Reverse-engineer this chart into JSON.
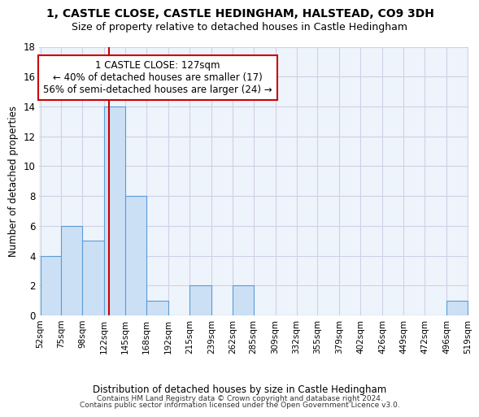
{
  "title": "1, CASTLE CLOSE, CASTLE HEDINGHAM, HALSTEAD, CO9 3DH",
  "subtitle": "Size of property relative to detached houses in Castle Hedingham",
  "xlabel": "Distribution of detached houses by size in Castle Hedingham",
  "ylabel": "Number of detached properties",
  "footer_line1": "Contains HM Land Registry data © Crown copyright and database right 2024.",
  "footer_line2": "Contains public sector information licensed under the Open Government Licence v3.0.",
  "bar_edges": [
    52,
    75,
    98,
    122,
    145,
    168,
    192,
    215,
    239,
    262,
    285,
    309,
    332,
    355,
    379,
    402,
    426,
    449,
    472,
    496,
    519
  ],
  "bar_values": [
    4,
    6,
    5,
    14,
    8,
    1,
    0,
    2,
    0,
    2,
    0,
    0,
    0,
    0,
    0,
    0,
    0,
    0,
    0,
    1
  ],
  "bar_color": "#cce0f5",
  "bar_edge_color": "#5b9bd5",
  "grid_color": "#d0d0e8",
  "background_color": "#eef4fb",
  "red_line_x": 127,
  "annotation_text_line1": "1 CASTLE CLOSE: 127sqm",
  "annotation_text_line2": "← 40% of detached houses are smaller (17)",
  "annotation_text_line3": "56% of semi-detached houses are larger (24) →",
  "annotation_box_color": "#cc0000",
  "ylim": [
    0,
    18
  ],
  "yticks": [
    0,
    2,
    4,
    6,
    8,
    10,
    12,
    14,
    16,
    18
  ],
  "title_fontsize": 10,
  "subtitle_fontsize": 9
}
